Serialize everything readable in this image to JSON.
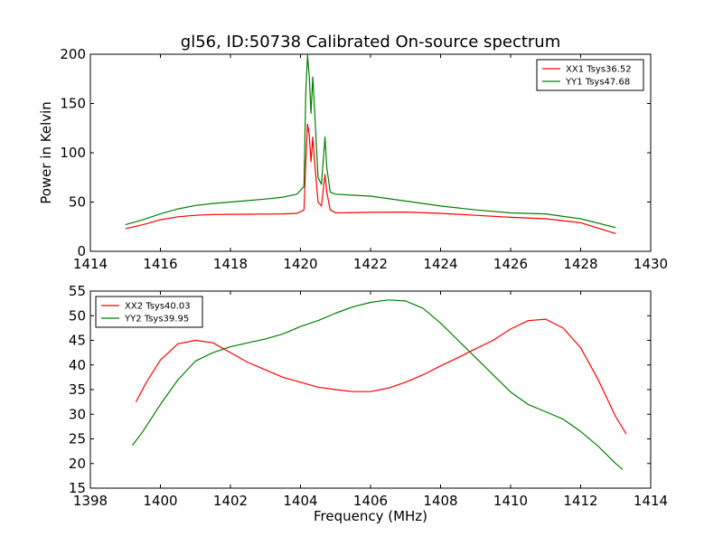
{
  "chart_data": [
    {
      "type": "line",
      "title": "gl56, ID:50738 Calibrated On-source spectrum",
      "xlabel": "",
      "ylabel": "Power in Kelvin",
      "xlim": [
        1414,
        1430
      ],
      "ylim": [
        0,
        200
      ],
      "xticks": [
        "1414",
        "1416",
        "1418",
        "1420",
        "1422",
        "1424",
        "1426",
        "1428",
        "1430"
      ],
      "yticks": [
        "0",
        "50",
        "100",
        "150",
        "200"
      ],
      "legend_position": "top-right",
      "grid": false,
      "series": [
        {
          "name": "XX1 Tsys36.52",
          "color": "#ff0000",
          "points": [
            [
              1415.0,
              23
            ],
            [
              1415.5,
              27
            ],
            [
              1416.0,
              32
            ],
            [
              1416.5,
              35
            ],
            [
              1417.0,
              36.5
            ],
            [
              1417.5,
              37.3
            ],
            [
              1418.0,
              37.5
            ],
            [
              1418.5,
              37.6
            ],
            [
              1419.0,
              37.8
            ],
            [
              1419.5,
              38
            ],
            [
              1419.9,
              38.5
            ],
            [
              1420.1,
              42
            ],
            [
              1420.15,
              90
            ],
            [
              1420.2,
              129
            ],
            [
              1420.25,
              118
            ],
            [
              1420.3,
              91
            ],
            [
              1420.35,
              116
            ],
            [
              1420.4,
              92
            ],
            [
              1420.5,
              50
            ],
            [
              1420.6,
              46
            ],
            [
              1420.7,
              78
            ],
            [
              1420.75,
              60
            ],
            [
              1420.85,
              42
            ],
            [
              1421.0,
              39
            ],
            [
              1422.0,
              39.5
            ],
            [
              1423.0,
              39.8
            ],
            [
              1424.0,
              38.5
            ],
            [
              1425.0,
              36.5
            ],
            [
              1426.0,
              34.5
            ],
            [
              1427.0,
              33
            ],
            [
              1428.0,
              29
            ],
            [
              1429.0,
              18
            ]
          ]
        },
        {
          "name": "YY1 Tsys47.68",
          "color": "#008000",
          "points": [
            [
              1415.0,
              27
            ],
            [
              1415.5,
              32
            ],
            [
              1416.0,
              38
            ],
            [
              1416.5,
              43
            ],
            [
              1417.0,
              46.5
            ],
            [
              1417.5,
              48.5
            ],
            [
              1418.0,
              50
            ],
            [
              1418.5,
              51.5
            ],
            [
              1419.0,
              53
            ],
            [
              1419.5,
              55
            ],
            [
              1419.9,
              58
            ],
            [
              1420.1,
              66
            ],
            [
              1420.15,
              160
            ],
            [
              1420.2,
              199
            ],
            [
              1420.25,
              178
            ],
            [
              1420.3,
              140
            ],
            [
              1420.35,
              177
            ],
            [
              1420.4,
              145
            ],
            [
              1420.5,
              75
            ],
            [
              1420.6,
              68
            ],
            [
              1420.7,
              116
            ],
            [
              1420.75,
              85
            ],
            [
              1420.85,
              60
            ],
            [
              1421.0,
              58
            ],
            [
              1422.0,
              56
            ],
            [
              1423.0,
              51
            ],
            [
              1424.0,
              46
            ],
            [
              1425.0,
              42
            ],
            [
              1426.0,
              39
            ],
            [
              1427.0,
              38
            ],
            [
              1428.0,
              33
            ],
            [
              1429.0,
              24
            ]
          ]
        }
      ]
    },
    {
      "type": "line",
      "title": "",
      "xlabel": "Frequency (MHz)",
      "ylabel": "",
      "xlim": [
        1398,
        1414
      ],
      "ylim": [
        15,
        55
      ],
      "xticks": [
        "1398",
        "1400",
        "1402",
        "1404",
        "1406",
        "1408",
        "1410",
        "1412",
        "1414"
      ],
      "yticks": [
        "15",
        "20",
        "25",
        "30",
        "35",
        "40",
        "45",
        "50",
        "55"
      ],
      "legend_position": "top-left",
      "grid": false,
      "series": [
        {
          "name": "XX2 Tsys40.03",
          "color": "#ff0000",
          "points": [
            [
              1399.3,
              32.5
            ],
            [
              1399.6,
              36.5
            ],
            [
              1400.0,
              41
            ],
            [
              1400.5,
              44.3
            ],
            [
              1401.0,
              45
            ],
            [
              1401.5,
              44.5
            ],
            [
              1402.0,
              42.5
            ],
            [
              1402.5,
              40.5
            ],
            [
              1403.0,
              39
            ],
            [
              1403.5,
              37.5
            ],
            [
              1404.0,
              36.5
            ],
            [
              1404.5,
              35.5
            ],
            [
              1405.0,
              35
            ],
            [
              1405.5,
              34.6
            ],
            [
              1406.0,
              34.6
            ],
            [
              1406.5,
              35.3
            ],
            [
              1407.0,
              36.5
            ],
            [
              1407.5,
              38
            ],
            [
              1408.0,
              39.8
            ],
            [
              1408.5,
              41.5
            ],
            [
              1409.0,
              43.3
            ],
            [
              1409.5,
              45
            ],
            [
              1410.0,
              47.3
            ],
            [
              1410.5,
              49
            ],
            [
              1411.0,
              49.3
            ],
            [
              1411.5,
              47.5
            ],
            [
              1412.0,
              43.5
            ],
            [
              1412.5,
              37
            ],
            [
              1413.0,
              29.5
            ],
            [
              1413.3,
              26
            ]
          ]
        },
        {
          "name": "YY2 Tsys39.95",
          "color": "#008000",
          "points": [
            [
              1399.2,
              23.7
            ],
            [
              1399.5,
              26.5
            ],
            [
              1400.0,
              32
            ],
            [
              1400.5,
              37
            ],
            [
              1401.0,
              40.8
            ],
            [
              1401.5,
              42.5
            ],
            [
              1402.0,
              43.7
            ],
            [
              1402.5,
              44.5
            ],
            [
              1403.0,
              45.3
            ],
            [
              1403.5,
              46.3
            ],
            [
              1404.0,
              47.8
            ],
            [
              1404.5,
              49
            ],
            [
              1405.0,
              50.5
            ],
            [
              1405.5,
              51.8
            ],
            [
              1406.0,
              52.7
            ],
            [
              1406.5,
              53.2
            ],
            [
              1407.0,
              53
            ],
            [
              1407.5,
              51.5
            ],
            [
              1408.0,
              48.5
            ],
            [
              1408.5,
              45
            ],
            [
              1409.0,
              41.5
            ],
            [
              1409.5,
              38
            ],
            [
              1410.0,
              34.5
            ],
            [
              1410.5,
              32
            ],
            [
              1411.0,
              30.5
            ],
            [
              1411.5,
              29
            ],
            [
              1412.0,
              26.5
            ],
            [
              1412.5,
              23.5
            ],
            [
              1413.0,
              20
            ],
            [
              1413.2,
              18.8
            ]
          ]
        }
      ]
    }
  ]
}
